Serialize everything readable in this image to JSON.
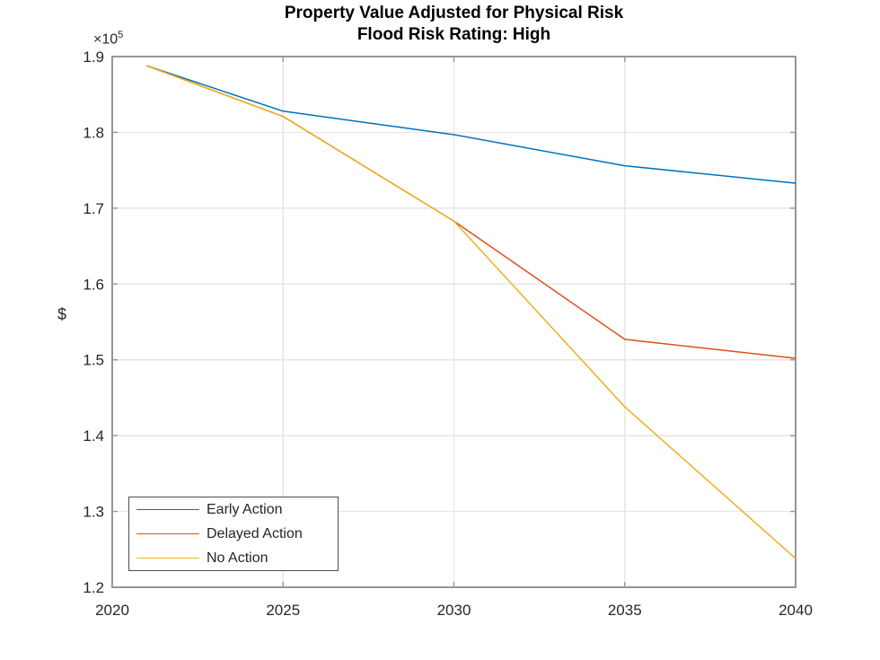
{
  "figure": {
    "title_line1": "Property Value Adjusted for Physical Risk",
    "title_line2": "Flood Risk Rating: High",
    "y_multiplier_base": "×10",
    "y_multiplier_exponent": "5",
    "background_color": "#ffffff"
  },
  "colors": {
    "axis_frame": "#969696",
    "grid": "#e6e6e6",
    "tick_text": "#262626",
    "title_text": "#000000",
    "legend_border": "#4d4d4d",
    "series_blue": "#0072BD",
    "series_red": "#D95319",
    "series_yellow": "#EDB120"
  },
  "chart_data": {
    "type": "line",
    "title": "Property Value Adjusted for Physical Risk",
    "subtitle": "Flood Risk Rating: High",
    "xlabel": "",
    "ylabel": "$",
    "y_unit_multiplier": 100000,
    "y_multiplier_label": "×10^5",
    "x": [
      2021,
      2025,
      2030,
      2035,
      2040
    ],
    "series": [
      {
        "name": "Early Action",
        "color": "#0072BD",
        "values": [
          1.888,
          1.828,
          1.797,
          1.756,
          1.733
        ]
      },
      {
        "name": "Delayed Action",
        "color": "#D95319",
        "values": [
          1.888,
          1.821,
          1.683,
          1.527,
          1.502
        ]
      },
      {
        "name": "No Action",
        "color": "#EDB120",
        "values": [
          1.888,
          1.821,
          1.683,
          1.438,
          1.238
        ]
      }
    ],
    "xlim": [
      2020,
      2040
    ],
    "ylim": [
      1.2,
      1.9
    ],
    "x_ticks": [
      2020,
      2025,
      2030,
      2035,
      2040
    ],
    "x_tick_labels": [
      "2020",
      "2025",
      "2030",
      "2035",
      "2040"
    ],
    "y_ticks": [
      1.2,
      1.3,
      1.4,
      1.5,
      1.6,
      1.7,
      1.8,
      1.9
    ],
    "y_tick_labels": [
      "1.2",
      "1.3",
      "1.4",
      "1.5",
      "1.6",
      "1.7",
      "1.8",
      "1.9"
    ],
    "grid": true,
    "legend_position": "inside-bottom-left",
    "legend_entries": [
      "Early Action",
      "Delayed Action",
      "No Action"
    ]
  }
}
